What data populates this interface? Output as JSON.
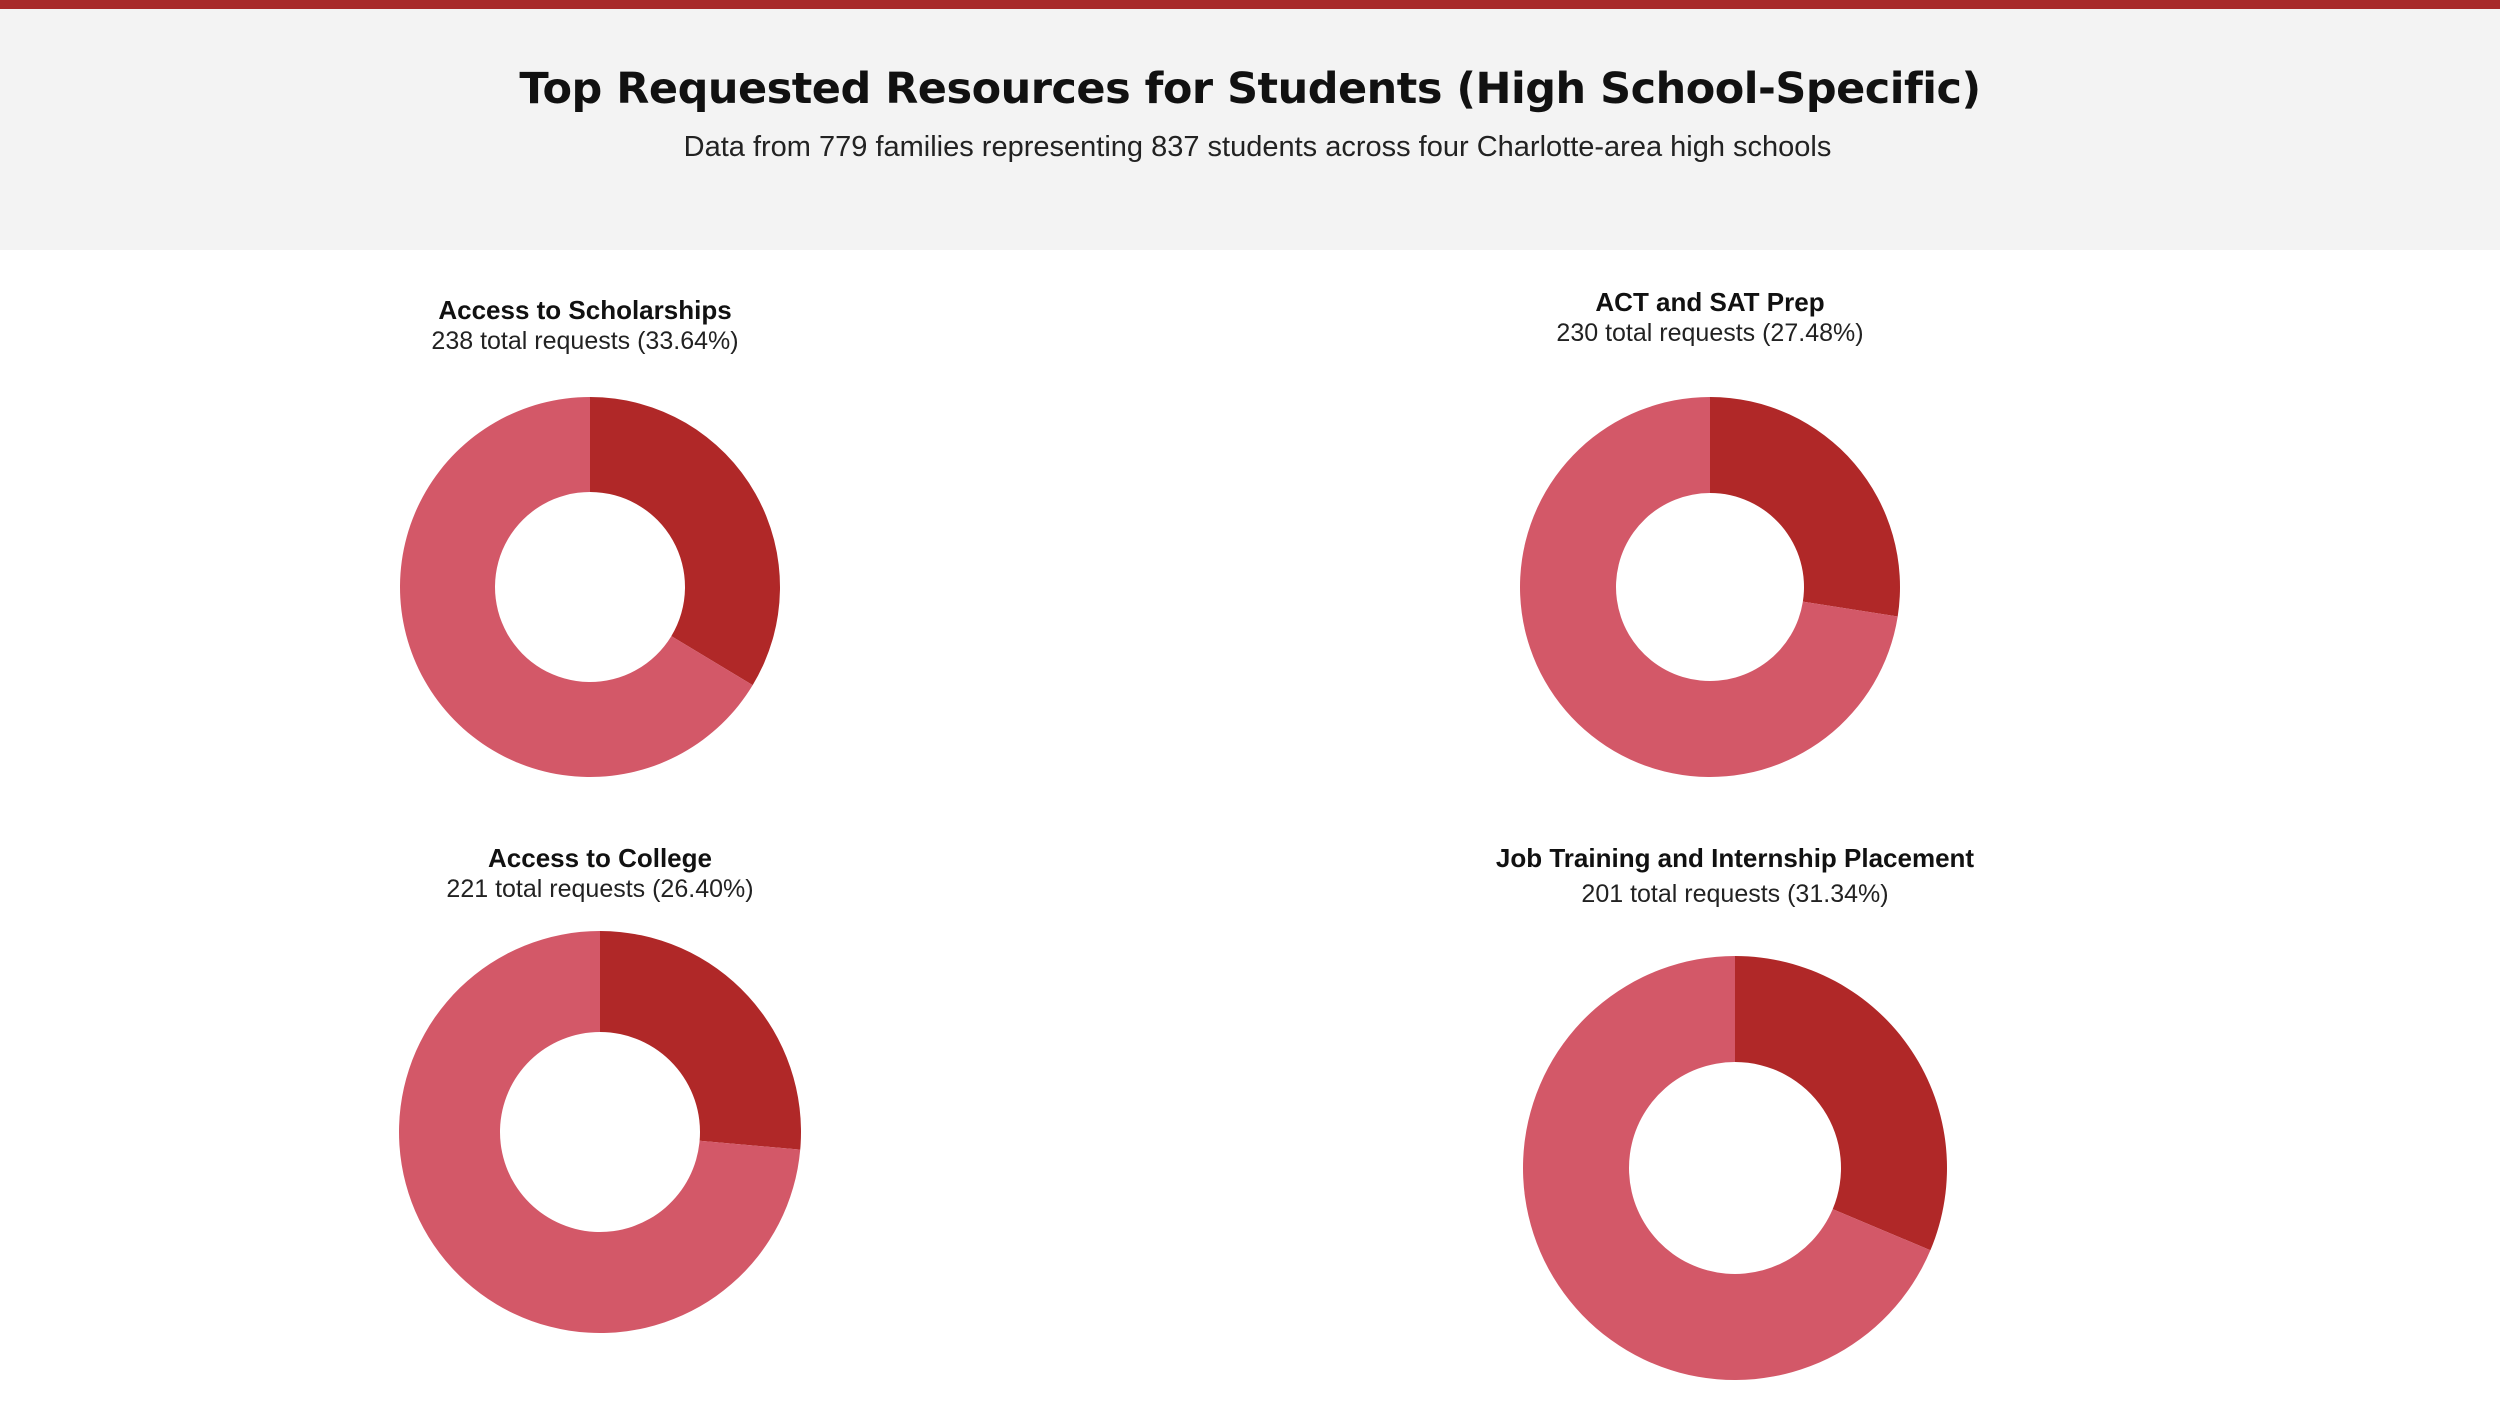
{
  "header": {
    "title": "Top Requested Resources for Students (High School-Specific)",
    "subtitle": "Data from 779 families representing 837 students across four Charlotte-area high schools"
  },
  "colors": {
    "top_rule": "#a82a2a",
    "header_bg": "#f3f3f3",
    "highlight_slice": "#b02828",
    "remainder_slice": "#d35868"
  },
  "chart_data": [
    {
      "type": "pie",
      "title": "Access to Scholarships",
      "subtitle": "238 total requests (33.64%)",
      "total_requests": 238,
      "percent": 33.64,
      "values": [
        33.64,
        66.36
      ]
    },
    {
      "type": "pie",
      "title": "ACT and SAT Prep",
      "subtitle": "230 total requests (27.48%)",
      "total_requests": 230,
      "percent": 27.48,
      "values": [
        27.48,
        72.52
      ]
    },
    {
      "type": "pie",
      "title": "Access to College",
      "subtitle": "221 total requests (26.40%)",
      "total_requests": 221,
      "percent": 26.4,
      "values": [
        26.4,
        73.6
      ]
    },
    {
      "type": "pie",
      "title": "Job Training and Internship Placement",
      "subtitle": "201 total requests (31.34%)",
      "total_requests": 201,
      "percent": 31.34,
      "values": [
        31.34,
        68.66
      ]
    }
  ]
}
